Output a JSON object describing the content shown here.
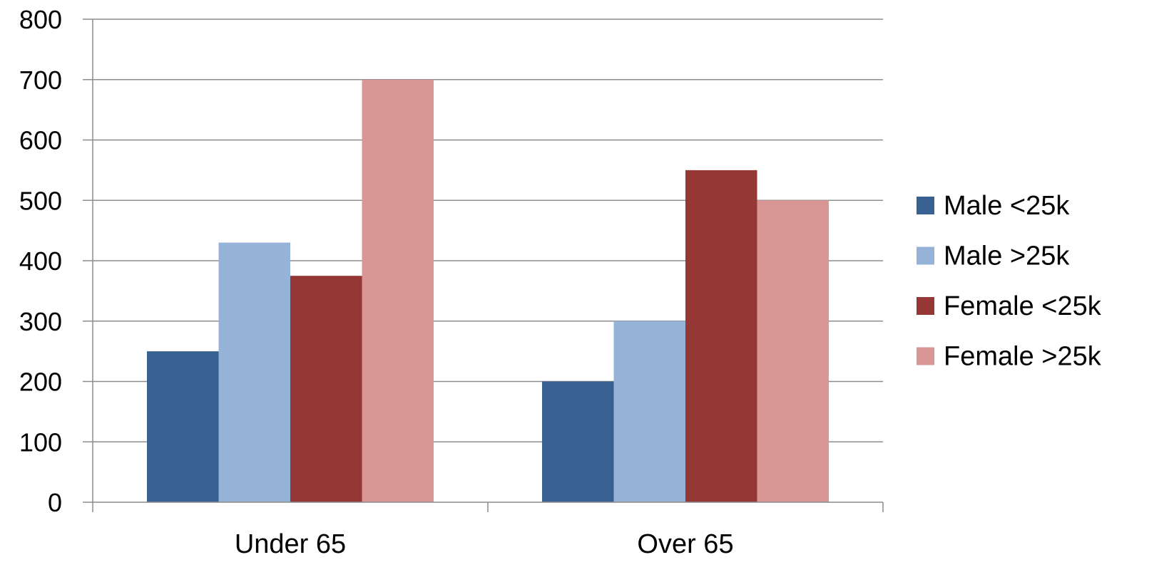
{
  "chart_data": {
    "type": "bar",
    "title": "",
    "xlabel": "",
    "ylabel": "",
    "categories": [
      "Under 65",
      "Over 65"
    ],
    "series": [
      {
        "name": "Male <25k",
        "color": "#386192",
        "values": [
          250,
          200
        ]
      },
      {
        "name": "Male >25k",
        "color": "#95B3D7",
        "values": [
          430,
          300
        ]
      },
      {
        "name": "Female <25k",
        "color": "#953735",
        "values": [
          375,
          550
        ]
      },
      {
        "name": "Female >25k",
        "color": "#D99694",
        "values": [
          700,
          500
        ]
      }
    ],
    "ylim": [
      0,
      800
    ],
    "yticks": [
      0,
      100,
      200,
      300,
      400,
      500,
      600,
      700,
      800
    ],
    "grid": true,
    "legend_position": "right"
  }
}
